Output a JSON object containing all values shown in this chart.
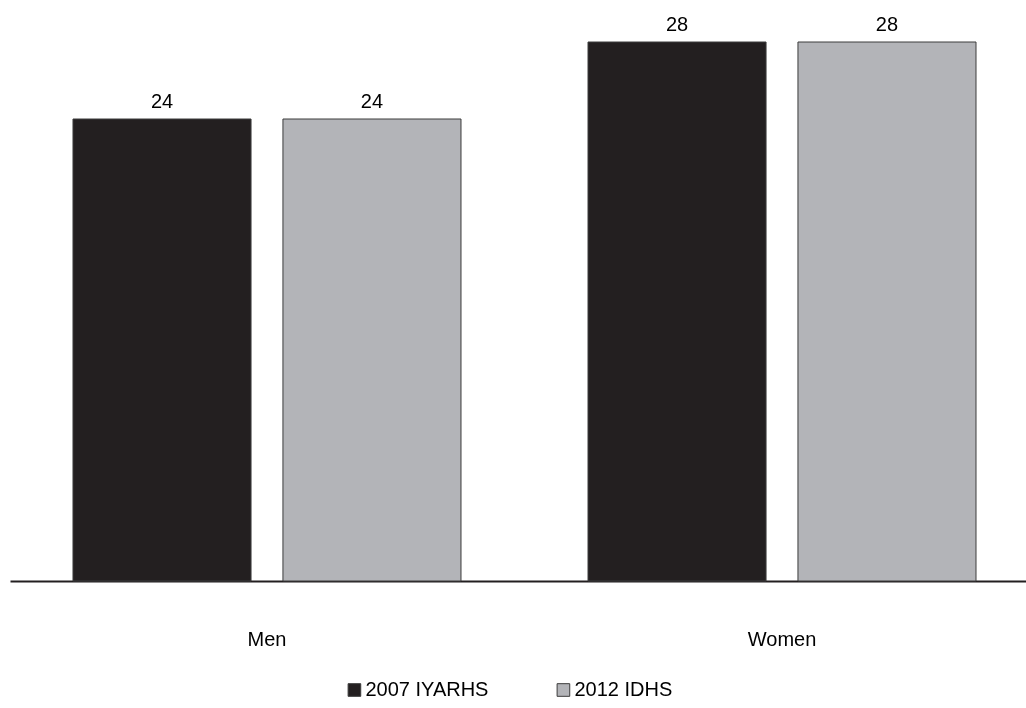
{
  "chart_data": {
    "type": "bar",
    "categories": [
      "Men",
      "Women"
    ],
    "series": [
      {
        "name": "2007 IYARHS",
        "color": "#231f20",
        "values": [
          24,
          28
        ]
      },
      {
        "name": "2012 IDHS",
        "color": "#b3b4b8",
        "values": [
          24,
          28
        ]
      }
    ],
    "data_labels": true,
    "legend": "bottom"
  }
}
